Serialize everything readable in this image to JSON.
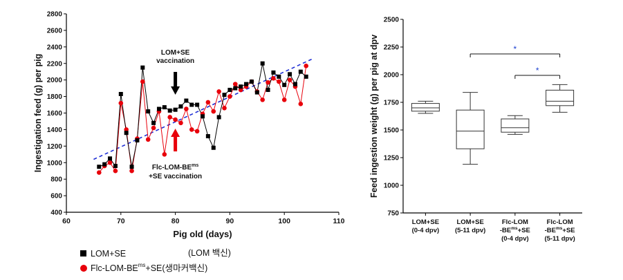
{
  "chart_data": [
    {
      "type": "line",
      "xlabel": "Pig old (days)",
      "ylabel": "Ingestigation feed (g) per pig",
      "xlim": [
        60,
        110
      ],
      "ylim": [
        400,
        2800
      ],
      "xticks": [
        60,
        70,
        80,
        90,
        100,
        110
      ],
      "yticks": [
        400,
        600,
        800,
        1000,
        1200,
        1400,
        1600,
        1800,
        2000,
        2200,
        2400,
        2600,
        2800
      ],
      "series": [
        {
          "name": "LOM+SE",
          "marker": "square",
          "color": "#000000",
          "x": [
            66,
            67,
            68,
            69,
            70,
            71,
            72,
            73,
            74,
            75,
            76,
            77,
            78,
            79,
            80,
            81,
            82,
            83,
            84,
            85,
            86,
            87,
            88,
            89,
            90,
            91,
            92,
            93,
            94,
            95,
            96,
            97,
            98,
            99,
            100,
            101,
            102,
            103,
            104
          ],
          "y": [
            950,
            980,
            1050,
            960,
            1830,
            1360,
            950,
            1270,
            2150,
            1620,
            1480,
            1650,
            1670,
            1630,
            1640,
            1680,
            1750,
            1700,
            1700,
            1560,
            1320,
            1180,
            1550,
            1820,
            1880,
            1900,
            1920,
            1950,
            1980,
            1850,
            2200,
            1880,
            2090,
            2040,
            1940,
            2070,
            1950,
            2100,
            2040
          ]
        },
        {
          "name": "Flc-LOM-BE^ms+SE",
          "marker": "circle",
          "color": "#e8000b",
          "x": [
            66,
            67,
            68,
            69,
            70,
            71,
            72,
            73,
            74,
            75,
            76,
            77,
            78,
            79,
            80,
            81,
            82,
            83,
            84,
            85,
            86,
            87,
            88,
            89,
            90,
            91,
            92,
            93,
            94,
            95,
            96,
            97,
            98,
            99,
            100,
            101,
            102,
            103,
            104
          ],
          "y": [
            880,
            960,
            1000,
            900,
            1720,
            1400,
            900,
            1290,
            1980,
            1280,
            1420,
            1620,
            1100,
            1550,
            1520,
            1480,
            1650,
            1400,
            1380,
            1590,
            1730,
            1620,
            1860,
            1660,
            1800,
            1950,
            1880,
            1920,
            1980,
            1860,
            1760,
            1970,
            2020,
            1980,
            1760,
            2000,
            1920,
            1710,
            2170
          ]
        }
      ],
      "trendline": {
        "x": [
          65,
          105
        ],
        "y": [
          1040,
          2250
        ],
        "style": "dashed",
        "color": "#1f2fd6"
      },
      "annotations": {
        "black_arrow": {
          "text_line1": "LOM+SE",
          "text_line2": "vaccination",
          "x": 80
        },
        "red_arrow": {
          "text_line1": "Flc-LOM-BE",
          "text_sup": "ms",
          "text_line2": "+SE vaccination",
          "x": 80
        }
      }
    },
    {
      "type": "box",
      "ylabel": "Feed ingestion weight (g) per pig at dpv",
      "ylim": [
        750,
        2500
      ],
      "yticks": [
        750,
        1000,
        1250,
        1500,
        1750,
        2000,
        2250,
        2500
      ],
      "categories": [
        {
          "lines": [
            "LOM+SE",
            "(0-4 dpv)"
          ]
        },
        {
          "lines": [
            "LOM+SE",
            "(5-11 dpv)"
          ]
        },
        {
          "lines": [
            "Flc-LOM",
            "-BE",
            "ms",
            "+SE",
            "(0-4 dpv)"
          ]
        },
        {
          "lines": [
            "Flc-LOM",
            "-BE",
            "ms",
            "+SE",
            "(5-11 dpv)"
          ]
        }
      ],
      "boxes": [
        {
          "min": 1650,
          "q1": 1670,
          "median": 1700,
          "q3": 1740,
          "max": 1760
        },
        {
          "min": 1190,
          "q1": 1330,
          "median": 1490,
          "q3": 1680,
          "max": 1840
        },
        {
          "min": 1460,
          "q1": 1480,
          "median": 1520,
          "q3": 1600,
          "max": 1630
        },
        {
          "min": 1660,
          "q1": 1720,
          "median": 1760,
          "q3": 1860,
          "max": 1910
        }
      ],
      "significance": [
        {
          "from": 1,
          "to": 3,
          "label": "*"
        },
        {
          "from": 2,
          "to": 3,
          "label": "*"
        }
      ]
    }
  ],
  "legend": [
    {
      "marker": "square",
      "label": "LOM+SE",
      "note": "(LOM 백신)"
    },
    {
      "marker": "circle",
      "label_pre": "Flc-LOM-BE",
      "label_sup": "ms",
      "label_post": "+SE",
      "note": "(생마커백신)"
    }
  ]
}
